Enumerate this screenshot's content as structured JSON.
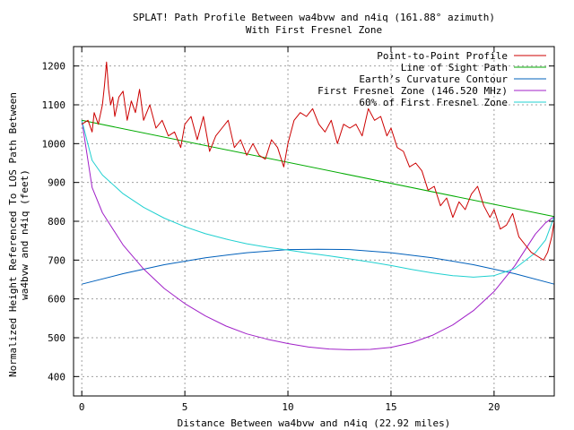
{
  "chart_data": {
    "type": "line",
    "title": "SPLAT! Path Profile Between wa4bvw and n4iq (161.88° azimuth)",
    "subtitle": "With First Fresnel Zone",
    "xlabel": "Distance Between wa4bvw and n4iq (22.92 miles)",
    "ylabel": "Normalized Height Referenced To LOS Path Between",
    "ylabel2": "wa4bvw and n4iq (feet)",
    "xlim": [
      -0.4,
      22.92
    ],
    "ylim": [
      350,
      1250
    ],
    "xticks": [
      "0",
      "5",
      "10",
      "15",
      "20"
    ],
    "yticks": [
      "400",
      "500",
      "600",
      "700",
      "800",
      "900",
      "1000",
      "1100",
      "1200"
    ],
    "grid": true,
    "legend_position": "top-right",
    "colors": {
      "profile": "#cc0000",
      "los": "#00aa00",
      "curvature": "#0060bb",
      "fresnel": "#a020c8",
      "fresnel60": "#20d0d0",
      "grid": "#a0a0a0"
    },
    "series": [
      {
        "name": "Point-to-Point Profile",
        "x": [
          0,
          0.3,
          0.5,
          0.6,
          0.8,
          1.0,
          1.1,
          1.2,
          1.3,
          1.4,
          1.5,
          1.6,
          1.8,
          2.0,
          2.2,
          2.4,
          2.6,
          2.8,
          3.0,
          3.3,
          3.6,
          3.9,
          4.2,
          4.5,
          4.8,
          5.0,
          5.3,
          5.6,
          5.9,
          6.2,
          6.5,
          6.8,
          7.1,
          7.4,
          7.7,
          8.0,
          8.3,
          8.6,
          8.9,
          9.2,
          9.5,
          9.8,
          10.0,
          10.3,
          10.6,
          10.9,
          11.2,
          11.5,
          11.8,
          12.1,
          12.4,
          12.7,
          13.0,
          13.3,
          13.6,
          13.9,
          14.2,
          14.5,
          14.8,
          15.0,
          15.3,
          15.6,
          15.9,
          16.2,
          16.5,
          16.8,
          17.1,
          17.4,
          17.7,
          18.0,
          18.3,
          18.6,
          18.9,
          19.2,
          19.5,
          19.8,
          20.0,
          20.3,
          20.6,
          20.9,
          21.2,
          21.5,
          21.8,
          22.1,
          22.4,
          22.6,
          22.8,
          22.92
        ],
        "y": [
          1050,
          1060,
          1030,
          1080,
          1050,
          1100,
          1150,
          1210,
          1140,
          1100,
          1120,
          1070,
          1120,
          1135,
          1060,
          1110,
          1080,
          1140,
          1060,
          1100,
          1040,
          1060,
          1020,
          1030,
          990,
          1050,
          1070,
          1010,
          1070,
          980,
          1020,
          1040,
          1060,
          990,
          1010,
          970,
          1000,
          970,
          960,
          1010,
          990,
          940,
          1000,
          1060,
          1080,
          1070,
          1090,
          1050,
          1030,
          1060,
          1000,
          1050,
          1040,
          1050,
          1020,
          1090,
          1060,
          1070,
          1020,
          1040,
          990,
          980,
          940,
          950,
          930,
          880,
          890,
          840,
          860,
          810,
          850,
          830,
          870,
          890,
          840,
          810,
          830,
          780,
          790,
          820,
          760,
          740,
          720,
          710,
          700,
          720,
          760,
          800
        ]
      },
      {
        "name": "Line of Sight Path",
        "x": [
          0,
          22.92
        ],
        "y": [
          1060,
          812
        ]
      },
      {
        "name": "Earth’s Curvature Contour",
        "x": [
          0,
          2,
          4,
          6,
          8,
          10,
          11.46,
          13,
          15,
          17,
          19,
          21,
          22.92
        ],
        "y": [
          638,
          665,
          688,
          706,
          719,
          727,
          728,
          727,
          719,
          706,
          688,
          665,
          638
        ]
      },
      {
        "name": "First Fresnel Zone (146.520 MHz)",
        "x": [
          0,
          0.5,
          1,
          2,
          3,
          4,
          5,
          6,
          7,
          8,
          9,
          10,
          11,
          12,
          13,
          14,
          15,
          16,
          17,
          18,
          19,
          20,
          21,
          22,
          22.5,
          22.92
        ],
        "y": [
          1060,
          887,
          822,
          739,
          677,
          627,
          588,
          556,
          530,
          510,
          496,
          485,
          476,
          471,
          469,
          470,
          475,
          487,
          506,
          533,
          570,
          619,
          685,
          767,
          796,
          812
        ]
      },
      {
        "name": "60% of First Fresnel Zone",
        "x": [
          0,
          0.5,
          1,
          2,
          3,
          4,
          5,
          6,
          7,
          8,
          9,
          10,
          11,
          12,
          13,
          14,
          15,
          16,
          17,
          18,
          19,
          20,
          21,
          22,
          22.5,
          22.92
        ],
        "y": [
          1060,
          957,
          919,
          871,
          836,
          808,
          786,
          768,
          754,
          742,
          733,
          726,
          718,
          711,
          703,
          695,
          686,
          676,
          667,
          660,
          656,
          660,
          678,
          719,
          752,
          812
        ]
      }
    ]
  }
}
